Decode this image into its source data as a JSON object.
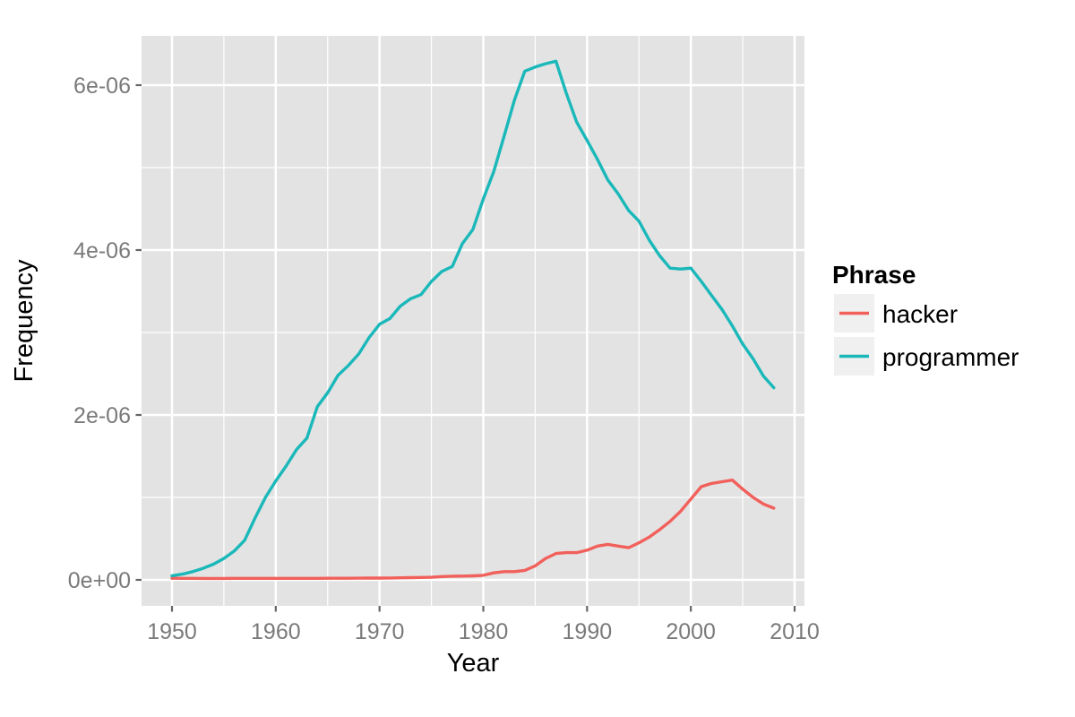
{
  "chart_data": {
    "type": "line",
    "title": "",
    "xlabel": "Year",
    "ylabel": "Frequency",
    "legend_title": "Phrase",
    "legend_position": "right",
    "grid": true,
    "x_axis": {
      "ticks": [
        1950,
        1960,
        1970,
        1980,
        1990,
        2000,
        2010
      ],
      "tick_labels": [
        "1950",
        "1960",
        "1970",
        "1980",
        "1990",
        "2000",
        "2010"
      ],
      "minor_ticks": [
        1955,
        1965,
        1975,
        1985,
        1995,
        2005
      ],
      "range": [
        1947.1,
        2010.9
      ]
    },
    "y_axis": {
      "ticks": [
        0,
        2e-06,
        4e-06,
        6e-06
      ],
      "tick_labels": [
        "0e+00",
        "2e-06",
        "4e-06",
        "6e-06"
      ],
      "minor_ticks": [
        1e-06,
        3e-06,
        5e-06
      ],
      "range": [
        -3.15e-07,
        6.62e-06
      ]
    },
    "x": [
      1950,
      1951,
      1952,
      1953,
      1954,
      1955,
      1956,
      1957,
      1958,
      1959,
      1960,
      1961,
      1962,
      1963,
      1964,
      1965,
      1966,
      1967,
      1968,
      1969,
      1970,
      1971,
      1972,
      1973,
      1974,
      1975,
      1976,
      1977,
      1978,
      1979,
      1980,
      1981,
      1982,
      1983,
      1984,
      1985,
      1986,
      1987,
      1988,
      1989,
      1990,
      1991,
      1992,
      1993,
      1994,
      1995,
      1996,
      1997,
      1998,
      1999,
      2000,
      2001,
      2002,
      2003,
      2004,
      2005,
      2006,
      2007,
      2008
    ],
    "series": [
      {
        "name": "hacker",
        "color": "#F1605B",
        "values": [
          2e-08,
          1.8e-08,
          1.8e-08,
          1.7e-08,
          1.7e-08,
          1.7e-08,
          1.8e-08,
          1.8e-08,
          1.8e-08,
          1.8e-08,
          1.9e-08,
          1.9e-08,
          1.9e-08,
          1.9e-08,
          1.9e-08,
          2e-08,
          2e-08,
          2e-08,
          2.1e-08,
          2.2e-08,
          2.2e-08,
          2.3e-08,
          2.5e-08,
          2.7e-08,
          2.9e-08,
          3.2e-08,
          4e-08,
          4.5e-08,
          4.6e-08,
          4.9e-08,
          5.5e-08,
          8.5e-08,
          1e-07,
          1e-07,
          1.15e-07,
          1.7e-07,
          2.6e-07,
          3.2e-07,
          3.3e-07,
          3.3e-07,
          3.6e-07,
          4.1e-07,
          4.3e-07,
          4.1e-07,
          3.9e-07,
          4.5e-07,
          5.2e-07,
          6.1e-07,
          7.1e-07,
          8.3e-07,
          9.8e-07,
          1.13e-06,
          1.17e-06,
          1.19e-06,
          1.21e-06,
          1.1e-06,
          1e-06,
          9.2e-07,
          8.7e-07
        ]
      },
      {
        "name": "programmer",
        "color": "#1BB8BA",
        "values": [
          5e-08,
          7e-08,
          1e-07,
          1.4e-07,
          1.9e-07,
          2.6e-07,
          3.5e-07,
          4.8e-07,
          7.5e-07,
          1e-06,
          1.2e-06,
          1.38e-06,
          1.58e-06,
          1.72e-06,
          2.1e-06,
          2.27e-06,
          2.48e-06,
          2.6e-06,
          2.74e-06,
          2.94e-06,
          3.1e-06,
          3.17e-06,
          3.32e-06,
          3.41e-06,
          3.46e-06,
          3.62e-06,
          3.74e-06,
          3.8e-06,
          4.08e-06,
          4.25e-06,
          4.62e-06,
          4.95e-06,
          5.38e-06,
          5.82e-06,
          6.17e-06,
          6.22e-06,
          6.26e-06,
          6.29e-06,
          5.9e-06,
          5.55e-06,
          5.33e-06,
          5.1e-06,
          4.85e-06,
          4.68e-06,
          4.48e-06,
          4.35e-06,
          4.12e-06,
          3.93e-06,
          3.78e-06,
          3.77e-06,
          3.78e-06,
          3.62e-06,
          3.45e-06,
          3.28e-06,
          3.08e-06,
          2.86e-06,
          2.68e-06,
          2.47e-06,
          2.33e-06
        ]
      }
    ],
    "colors": {
      "figure_bg": "#FFFFFF",
      "panel_bg": "#E3E3E3",
      "grid_major": "#FFFFFF",
      "grid_minor": "#FFFFFF",
      "tick_mark": "#666666",
      "tick_label": "#7A7A7A",
      "axis_title": "#000000",
      "legend_title": "#000000",
      "legend_label": "#000000",
      "legend_key_bg": "#F0F0F0"
    }
  }
}
